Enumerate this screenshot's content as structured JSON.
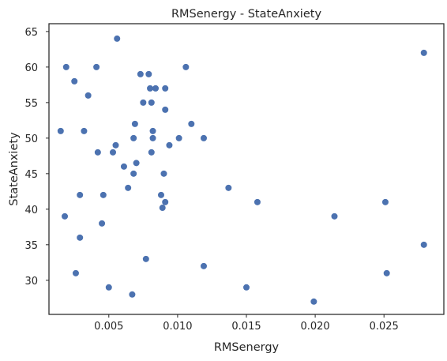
{
  "chart_data": {
    "type": "scatter",
    "title": "RMSenergy - StateAnxiety",
    "xlabel": "RMSenergy",
    "ylabel": "StateAnxiety",
    "xlim": [
      0.00065,
      0.02935
    ],
    "ylim": [
      25.2,
      66.1
    ],
    "xticks": [
      0.005,
      0.01,
      0.015,
      0.02,
      0.025
    ],
    "xtick_labels": [
      "0.005",
      "0.010",
      "0.015",
      "0.020",
      "0.025"
    ],
    "yticks": [
      30,
      35,
      40,
      45,
      50,
      55,
      60,
      65
    ],
    "ytick_labels": [
      "30",
      "35",
      "40",
      "45",
      "50",
      "55",
      "60",
      "65"
    ],
    "grid": false,
    "point_color": "#4c72b0",
    "x": [
      0.0015,
      0.0018,
      0.0019,
      0.0025,
      0.0026,
      0.0029,
      0.0029,
      0.0032,
      0.0035,
      0.0041,
      0.0042,
      0.0045,
      0.0046,
      0.005,
      0.0053,
      0.0055,
      0.0056,
      0.0061,
      0.0064,
      0.0067,
      0.0068,
      0.0068,
      0.0069,
      0.007,
      0.0073,
      0.0075,
      0.0077,
      0.0079,
      0.008,
      0.0081,
      0.0081,
      0.0082,
      0.0082,
      0.0084,
      0.0088,
      0.0089,
      0.009,
      0.0091,
      0.0091,
      0.0091,
      0.0094,
      0.0101,
      0.0106,
      0.011,
      0.0119,
      0.0119,
      0.0137,
      0.015,
      0.0158,
      0.0199,
      0.0214,
      0.0251,
      0.0252,
      0.0279,
      0.0279
    ],
    "y": [
      51,
      39,
      60,
      58,
      31,
      42,
      36,
      51,
      56,
      60,
      48,
      38,
      42,
      29,
      48,
      49,
      64,
      46,
      43,
      28,
      45,
      50,
      52,
      46.5,
      59,
      55,
      33,
      59,
      57,
      55,
      48,
      50,
      51,
      57,
      42,
      40.2,
      45,
      57,
      54,
      41,
      49,
      50,
      60,
      52,
      50,
      32,
      43,
      29,
      41,
      27,
      39,
      41,
      31,
      62,
      35
    ]
  }
}
